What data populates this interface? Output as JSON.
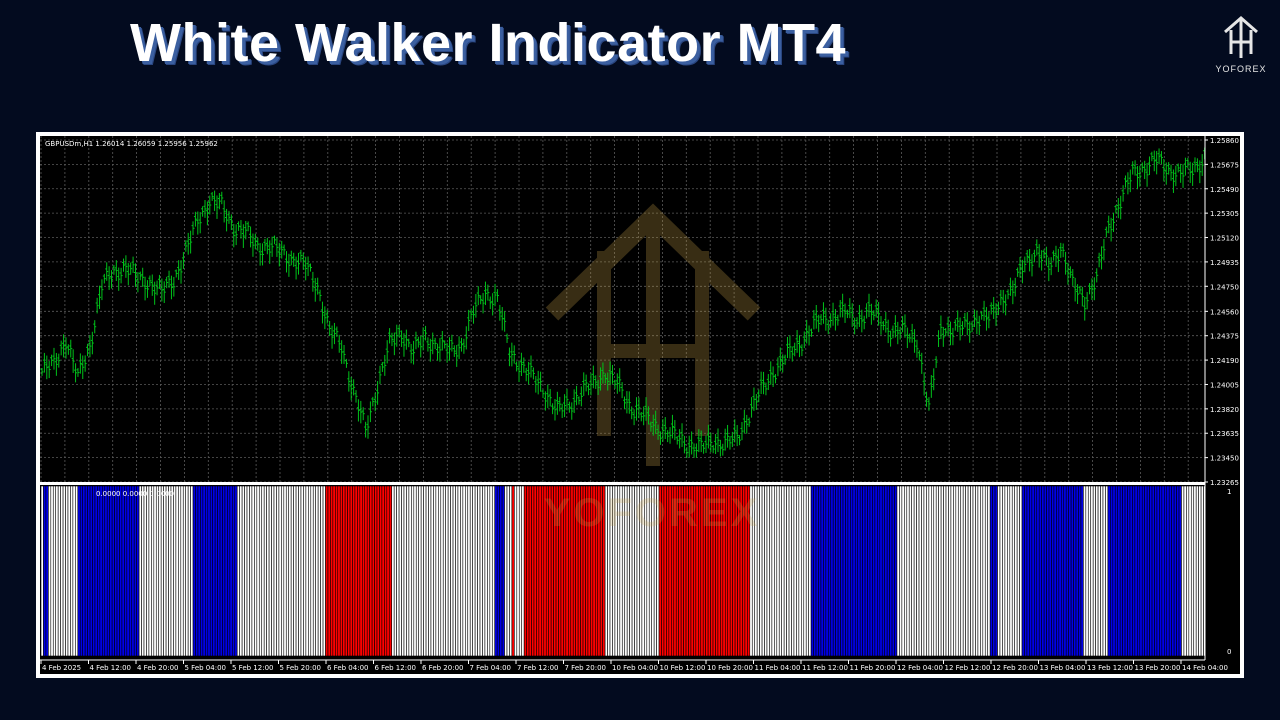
{
  "page": {
    "title": "White Walker Indicator MT4",
    "brand": "YOFOREX",
    "watermark": "YOFOREX"
  },
  "colors": {
    "background": "#030b1f",
    "candle": "#00c21a",
    "grid": "#5a5a5a",
    "buy": "#0000e6",
    "sell": "#ff0000",
    "neutral": "#ffffff"
  },
  "chart_data": {
    "type": "line",
    "symbol_info": "GBPUSDm,H1  1.26014 1.26059 1.25956 1.25962",
    "indicator_info": "0.0000 0.0000 0.0000",
    "price_ticks": [
      "1.25860",
      "1.25675",
      "1.25490",
      "1.25305",
      "1.25120",
      "1.24935",
      "1.24750",
      "1.24560",
      "1.24375",
      "1.24190",
      "1.24005",
      "1.23820",
      "1.23635",
      "1.23450",
      "1.23265"
    ],
    "ylim": [
      1.23265,
      1.2586
    ],
    "indicator_ticks": [
      "1",
      "0"
    ],
    "time_ticks": [
      "4 Feb 2025",
      "4 Feb 12:00",
      "4 Feb 20:00",
      "5 Feb 04:00",
      "5 Feb 12:00",
      "5 Feb 20:00",
      "6 Feb 04:00",
      "6 Feb 12:00",
      "6 Feb 20:00",
      "7 Feb 04:00",
      "7 Feb 12:00",
      "7 Feb 20:00",
      "10 Feb 04:00",
      "10 Feb 12:00",
      "10 Feb 20:00",
      "11 Feb 04:00",
      "11 Feb 12:00",
      "11 Feb 20:00",
      "12 Feb 04:00",
      "12 Feb 12:00",
      "12 Feb 20:00",
      "13 Feb 04:00",
      "13 Feb 12:00",
      "13 Feb 20:00",
      "14 Feb 04:00"
    ],
    "price_anchors": [
      [
        0,
        1.241
      ],
      [
        5,
        1.2415
      ],
      [
        10,
        1.2435
      ],
      [
        15,
        1.2405
      ],
      [
        20,
        1.243
      ],
      [
        25,
        1.2475
      ],
      [
        30,
        1.2485
      ],
      [
        35,
        1.249
      ],
      [
        40,
        1.248
      ],
      [
        45,
        1.2478
      ],
      [
        50,
        1.247
      ],
      [
        55,
        1.248
      ],
      [
        60,
        1.25
      ],
      [
        65,
        1.2525
      ],
      [
        70,
        1.254
      ],
      [
        75,
        1.2535
      ],
      [
        80,
        1.252
      ],
      [
        85,
        1.2515
      ],
      [
        90,
        1.2505
      ],
      [
        95,
        1.2505
      ],
      [
        100,
        1.25
      ],
      [
        105,
        1.2495
      ],
      [
        110,
        1.249
      ],
      [
        115,
        1.2475
      ],
      [
        120,
        1.244
      ],
      [
        125,
        1.243
      ],
      [
        130,
        1.2395
      ],
      [
        135,
        1.2365
      ],
      [
        140,
        1.24
      ],
      [
        145,
        1.243
      ],
      [
        150,
        1.244
      ],
      [
        155,
        1.2425
      ],
      [
        160,
        1.2435
      ],
      [
        165,
        1.243
      ],
      [
        170,
        1.2425
      ],
      [
        175,
        1.243
      ],
      [
        180,
        1.2455
      ],
      [
        185,
        1.247
      ],
      [
        190,
        1.2465
      ],
      [
        195,
        1.2425
      ],
      [
        200,
        1.2415
      ],
      [
        205,
        1.2405
      ],
      [
        210,
        1.2395
      ],
      [
        215,
        1.238
      ],
      [
        220,
        1.2385
      ],
      [
        225,
        1.2395
      ],
      [
        230,
        1.24
      ],
      [
        235,
        1.241
      ],
      [
        240,
        1.24
      ],
      [
        245,
        1.2385
      ],
      [
        250,
        1.2378
      ],
      [
        255,
        1.237
      ],
      [
        260,
        1.2365
      ],
      [
        265,
        1.236
      ],
      [
        270,
        1.2355
      ],
      [
        275,
        1.2352
      ],
      [
        280,
        1.2358
      ],
      [
        285,
        1.2355
      ],
      [
        290,
        1.236
      ],
      [
        295,
        1.2378
      ],
      [
        300,
        1.2395
      ],
      [
        305,
        1.241
      ],
      [
        310,
        1.242
      ],
      [
        315,
        1.243
      ],
      [
        320,
        1.244
      ],
      [
        325,
        1.245
      ],
      [
        330,
        1.2452
      ],
      [
        335,
        1.2455
      ],
      [
        340,
        1.245
      ],
      [
        345,
        1.2455
      ],
      [
        350,
        1.245
      ],
      [
        355,
        1.244
      ],
      [
        360,
        1.244
      ],
      [
        365,
        1.2435
      ],
      [
        370,
        1.238
      ],
      [
        375,
        1.2445
      ],
      [
        380,
        1.244
      ],
      [
        385,
        1.2445
      ],
      [
        390,
        1.245
      ],
      [
        395,
        1.245
      ],
      [
        400,
        1.2465
      ],
      [
        405,
        1.247
      ],
      [
        410,
        1.2495
      ],
      [
        415,
        1.25
      ],
      [
        420,
        1.249
      ],
      [
        425,
        1.2505
      ],
      [
        430,
        1.2475
      ],
      [
        435,
        1.2465
      ],
      [
        440,
        1.248
      ],
      [
        445,
        1.252
      ],
      [
        450,
        1.254
      ],
      [
        455,
        1.256
      ],
      [
        460,
        1.2565
      ],
      [
        465,
        1.257
      ],
      [
        470,
        1.2563
      ],
      [
        475,
        1.256
      ],
      [
        480,
        1.2563
      ],
      [
        485,
        1.2573
      ]
    ],
    "signal_runs": [
      {
        "signal": "white",
        "count": 1
      },
      {
        "signal": "blue",
        "count": 2
      },
      {
        "signal": "white",
        "count": 12
      },
      {
        "signal": "blue",
        "count": 25
      },
      {
        "signal": "white",
        "count": 22
      },
      {
        "signal": "blue",
        "count": 18
      },
      {
        "signal": "white",
        "count": 36
      },
      {
        "signal": "red",
        "count": 27
      },
      {
        "signal": "white",
        "count": 42
      },
      {
        "signal": "blue",
        "count": 4
      },
      {
        "signal": "white",
        "count": 3
      },
      {
        "signal": "red",
        "count": 1
      },
      {
        "signal": "white",
        "count": 4
      },
      {
        "signal": "red",
        "count": 33
      },
      {
        "signal": "white",
        "count": 22
      },
      {
        "signal": "red",
        "count": 37
      },
      {
        "signal": "white",
        "count": 25
      },
      {
        "signal": "blue",
        "count": 35
      },
      {
        "signal": "white",
        "count": 38
      },
      {
        "signal": "blue",
        "count": 3
      },
      {
        "signal": "white",
        "count": 10
      },
      {
        "signal": "blue",
        "count": 25
      },
      {
        "signal": "white",
        "count": 10
      },
      {
        "signal": "blue",
        "count": 30
      },
      {
        "signal": "white",
        "count": 10
      }
    ]
  }
}
